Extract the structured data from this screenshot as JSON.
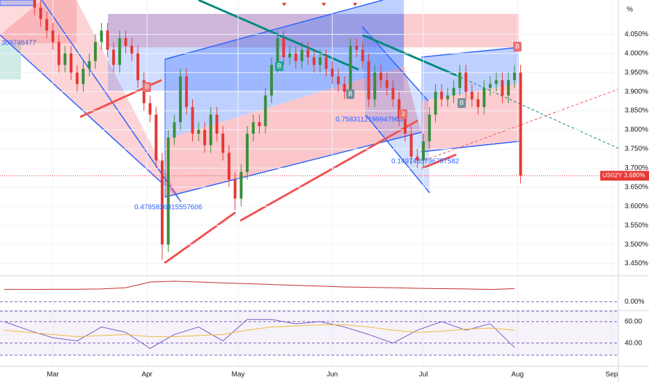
{
  "chart_data": [
    {
      "type": "candlestick",
      "y_unit": "%",
      "x": [
        -6,
        -4,
        -2,
        0,
        2,
        4,
        6,
        8,
        10,
        12,
        14,
        16,
        18,
        20,
        22,
        24,
        26,
        28,
        30,
        32,
        34,
        36,
        38,
        40,
        42,
        44,
        46,
        48,
        50,
        52,
        54,
        56,
        58,
        60,
        62,
        64,
        66,
        68,
        70,
        72,
        74,
        76,
        78,
        80,
        82,
        84,
        86,
        88,
        90,
        92,
        94,
        96,
        98,
        100,
        102,
        104,
        106,
        108,
        110,
        112,
        114,
        116,
        118,
        120,
        122,
        124,
        126,
        128,
        130,
        132,
        134,
        136,
        138,
        140,
        142,
        144,
        146,
        148,
        150,
        152,
        154
      ],
      "open": [
        4.14,
        4.12,
        4.09,
        4.06,
        4.03,
        3.97,
        4.0,
        3.95,
        3.92,
        3.96,
        3.98,
        4.03,
        4.06,
        4.01,
        3.97,
        4.04,
        4.02,
        4.0,
        3.93,
        3.87,
        3.84,
        3.72,
        3.5,
        3.78,
        3.82,
        3.94,
        3.86,
        3.79,
        3.8,
        3.76,
        3.84,
        3.79,
        3.74,
        3.67,
        3.62,
        3.69,
        3.79,
        3.82,
        3.81,
        3.89,
        3.97,
        4.04,
        3.99,
        4.0,
        3.98,
        4.01,
        3.99,
        3.97,
        3.99,
        3.96,
        3.94,
        3.92,
        3.9,
        4.02,
        4.01,
        3.98,
        3.88,
        3.95,
        3.93,
        3.91,
        3.88,
        3.83,
        3.79,
        3.73,
        3.72,
        3.77,
        3.84,
        3.9,
        3.88,
        3.89,
        3.91,
        3.95,
        3.9,
        3.88,
        3.86,
        3.91,
        3.92,
        3.93,
        3.89,
        3.93,
        3.95
      ],
      "high": [
        4.16,
        4.14,
        4.11,
        4.08,
        4.05,
        4.02,
        4.02,
        3.97,
        3.98,
        4.0,
        4.05,
        4.08,
        4.08,
        4.03,
        4.06,
        4.06,
        4.04,
        4.02,
        3.95,
        3.89,
        3.86,
        3.74,
        3.8,
        3.84,
        3.96,
        3.96,
        3.88,
        3.82,
        3.82,
        3.86,
        3.86,
        3.81,
        3.76,
        3.69,
        3.71,
        3.81,
        3.84,
        3.84,
        3.91,
        3.99,
        4.06,
        4.06,
        4.02,
        4.02,
        4.03,
        4.03,
        4.01,
        4.01,
        4.01,
        3.98,
        3.96,
        3.94,
        4.04,
        4.04,
        4.03,
        4.0,
        3.97,
        3.97,
        3.95,
        3.93,
        3.9,
        3.85,
        3.81,
        3.75,
        3.79,
        3.86,
        3.92,
        3.92,
        3.91,
        3.93,
        3.97,
        3.97,
        3.92,
        3.9,
        3.93,
        3.94,
        3.95,
        3.95,
        3.95,
        3.97,
        3.97
      ],
      "low": [
        4.1,
        4.07,
        4.04,
        4.01,
        3.95,
        3.95,
        3.93,
        3.9,
        3.9,
        3.94,
        3.96,
        4.01,
        3.99,
        3.95,
        3.95,
        4.0,
        3.98,
        3.91,
        3.85,
        3.82,
        3.7,
        3.46,
        3.48,
        3.76,
        3.8,
        3.84,
        3.77,
        3.77,
        3.74,
        3.74,
        3.77,
        3.72,
        3.65,
        3.59,
        3.6,
        3.67,
        3.77,
        3.79,
        3.79,
        3.87,
        3.95,
        3.97,
        3.97,
        3.96,
        3.96,
        3.97,
        3.95,
        3.95,
        3.94,
        3.92,
        3.9,
        3.88,
        3.88,
        3.99,
        3.96,
        3.86,
        3.86,
        3.91,
        3.89,
        3.86,
        3.81,
        3.77,
        3.71,
        3.7,
        3.7,
        3.75,
        3.82,
        3.86,
        3.86,
        3.87,
        3.89,
        3.88,
        3.86,
        3.84,
        3.84,
        3.89,
        3.9,
        3.87,
        3.87,
        3.91,
        3.66
      ],
      "close": [
        4.12,
        4.09,
        4.06,
        4.03,
        3.97,
        4.0,
        3.95,
        3.92,
        3.96,
        3.98,
        4.03,
        4.06,
        4.01,
        3.97,
        4.04,
        4.02,
        4.0,
        3.93,
        3.87,
        3.84,
        3.72,
        3.5,
        3.78,
        3.82,
        3.94,
        3.86,
        3.79,
        3.8,
        3.76,
        3.84,
        3.79,
        3.74,
        3.67,
        3.62,
        3.69,
        3.79,
        3.82,
        3.81,
        3.89,
        3.97,
        4.04,
        3.99,
        4.0,
        3.98,
        4.01,
        3.99,
        3.97,
        3.99,
        3.96,
        3.94,
        3.92,
        3.9,
        4.02,
        4.01,
        3.98,
        3.88,
        3.95,
        3.93,
        3.91,
        3.88,
        3.83,
        3.79,
        3.73,
        3.72,
        3.77,
        3.84,
        3.9,
        3.88,
        3.89,
        3.91,
        3.95,
        3.9,
        3.88,
        3.86,
        3.91,
        3.92,
        3.93,
        3.89,
        3.93,
        3.95,
        3.68
      ],
      "up_color": "#388e3c",
      "down_color": "#e53935",
      "xlim": [
        -17.4,
        186.2
      ],
      "xticks": [
        {
          "value": 0,
          "label": "Mar"
        },
        {
          "value": 31,
          "label": "Apr"
        },
        {
          "value": 61,
          "label": "May"
        },
        {
          "value": 92,
          "label": "Jun"
        },
        {
          "value": 122,
          "label": "Jul"
        },
        {
          "value": 153,
          "label": "Aug"
        },
        {
          "value": 184,
          "label": "Sep"
        }
      ],
      "ylim": [
        3.42,
        4.14
      ],
      "yticks": [
        {
          "value": 3.45,
          "label": "3.450%"
        },
        {
          "value": 3.5,
          "label": "3.500%"
        },
        {
          "value": 3.55,
          "label": "3.550%"
        },
        {
          "value": 3.6,
          "label": "3.600%"
        },
        {
          "value": 3.65,
          "label": "3.650%"
        },
        {
          "value": 3.7,
          "label": "3.700%"
        },
        {
          "value": 3.75,
          "label": "3.750%"
        },
        {
          "value": 3.8,
          "label": "3.800%"
        },
        {
          "value": 3.85,
          "label": "3.850%"
        },
        {
          "value": 3.9,
          "label": "3.900%"
        },
        {
          "value": 3.95,
          "label": "3.950%"
        },
        {
          "value": 4.0,
          "label": "4.000%"
        },
        {
          "value": 4.05,
          "label": "4.050%"
        }
      ],
      "grid": true,
      "last_price": {
        "symbol": "US02Y",
        "value": 3.68,
        "label": "3.680%"
      },
      "annotations": [
        "309746477",
        "0.4785836315557606",
        "0.7583112199947963",
        "0.1497485796757582",
        "B",
        "B",
        "B",
        "3",
        "B",
        "B"
      ]
    },
    {
      "type": "line",
      "x": [
        -16,
        -8,
        0,
        8,
        16,
        24,
        32,
        40,
        48,
        56,
        64,
        72,
        80,
        88,
        96,
        104,
        112,
        120,
        128,
        136,
        144,
        152
      ],
      "xlim": [
        -17.4,
        186.2
      ],
      "ylim": [
        -0.5,
        1.5
      ],
      "yticks": [
        {
          "value": 0,
          "label": "0.00%"
        }
      ],
      "series": [
        {
          "color": "#c62828",
          "values": [
            0.75,
            0.75,
            0.76,
            0.76,
            0.78,
            0.85,
            1.2,
            1.25,
            1.2,
            1.15,
            1.1,
            1.05,
            1.0,
            0.95,
            0.9,
            0.88,
            0.85,
            0.82,
            0.8,
            0.78,
            0.75,
            0.8
          ]
        }
      ]
    },
    {
      "type": "line",
      "x": [
        -16,
        -8,
        0,
        8,
        16,
        24,
        32,
        40,
        48,
        56,
        64,
        72,
        80,
        88,
        96,
        104,
        112,
        120,
        128,
        136,
        144,
        152
      ],
      "xlim": [
        -17.4,
        186.2
      ],
      "ylim": [
        19,
        69
      ],
      "yticks": [
        {
          "value": 40,
          "label": "40.00"
        },
        {
          "value": 60,
          "label": "60.00"
        }
      ],
      "series": [
        {
          "color": "#7e57c2",
          "values": [
            60,
            52,
            45,
            42,
            55,
            50,
            35,
            48,
            55,
            42,
            62,
            62,
            58,
            60,
            55,
            48,
            40,
            52,
            60,
            52,
            58,
            36
          ]
        },
        {
          "color": "#fbc02d",
          "values": [
            52,
            50,
            48,
            46,
            47,
            48,
            46,
            46,
            47,
            48,
            52,
            55,
            56,
            57,
            57,
            55,
            52,
            50,
            51,
            53,
            54,
            52
          ]
        }
      ]
    }
  ]
}
